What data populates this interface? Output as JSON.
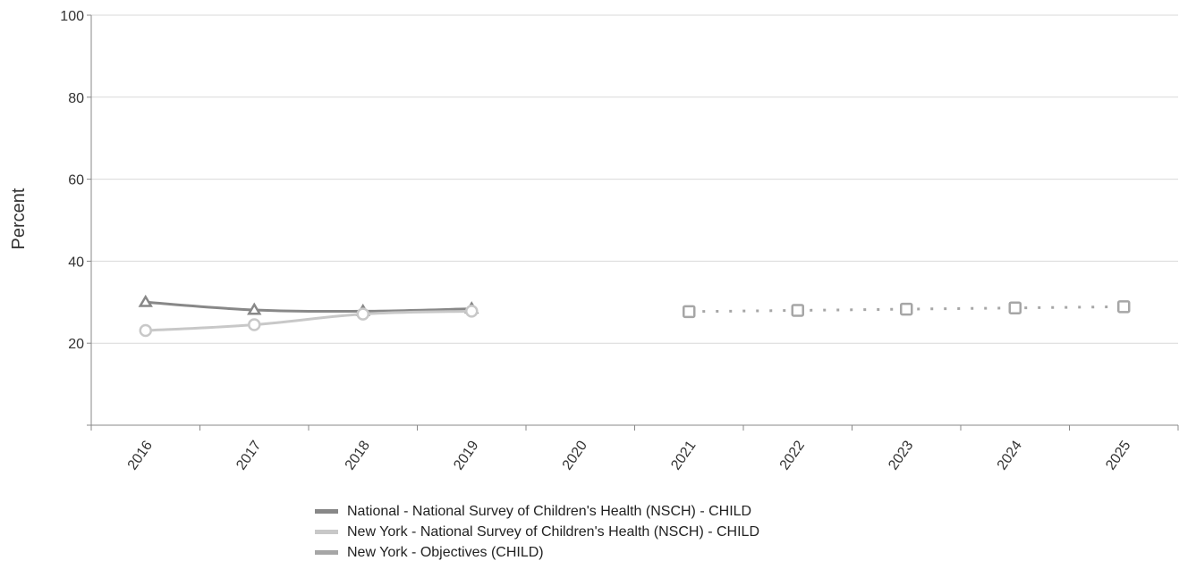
{
  "chart_data": {
    "type": "line",
    "ylabel": "Percent",
    "ylim": [
      0,
      100
    ],
    "yticks": [
      20,
      40,
      60,
      80,
      100
    ],
    "categories": [
      "2016",
      "2017",
      "2018",
      "2019",
      "2020",
      "2021",
      "2022",
      "2023",
      "2024",
      "2025"
    ],
    "grid": true,
    "legend_position": "bottom",
    "series": [
      {
        "name": "National - National Survey of Children's Health (NSCH) - CHILD",
        "color": "#888888",
        "style": "solid",
        "marker": "triangle",
        "x": [
          "2016",
          "2017",
          "2018",
          "2019"
        ],
        "values": [
          30.0,
          28.1,
          27.8,
          28.4
        ]
      },
      {
        "name": "New York - National Survey of Children's Health (NSCH) - CHILD",
        "color": "#c8c8c8",
        "style": "solid",
        "marker": "circle",
        "x": [
          "2016",
          "2017",
          "2018",
          "2019"
        ],
        "values": [
          23.1,
          24.5,
          27.1,
          27.8
        ]
      },
      {
        "name": "New York - Objectives (CHILD)",
        "color": "#a6a6a6",
        "style": "dotted",
        "marker": "square",
        "x": [
          "2021",
          "2022",
          "2023",
          "2024",
          "2025"
        ],
        "values": [
          27.7,
          28.0,
          28.3,
          28.6,
          28.9
        ]
      }
    ]
  }
}
